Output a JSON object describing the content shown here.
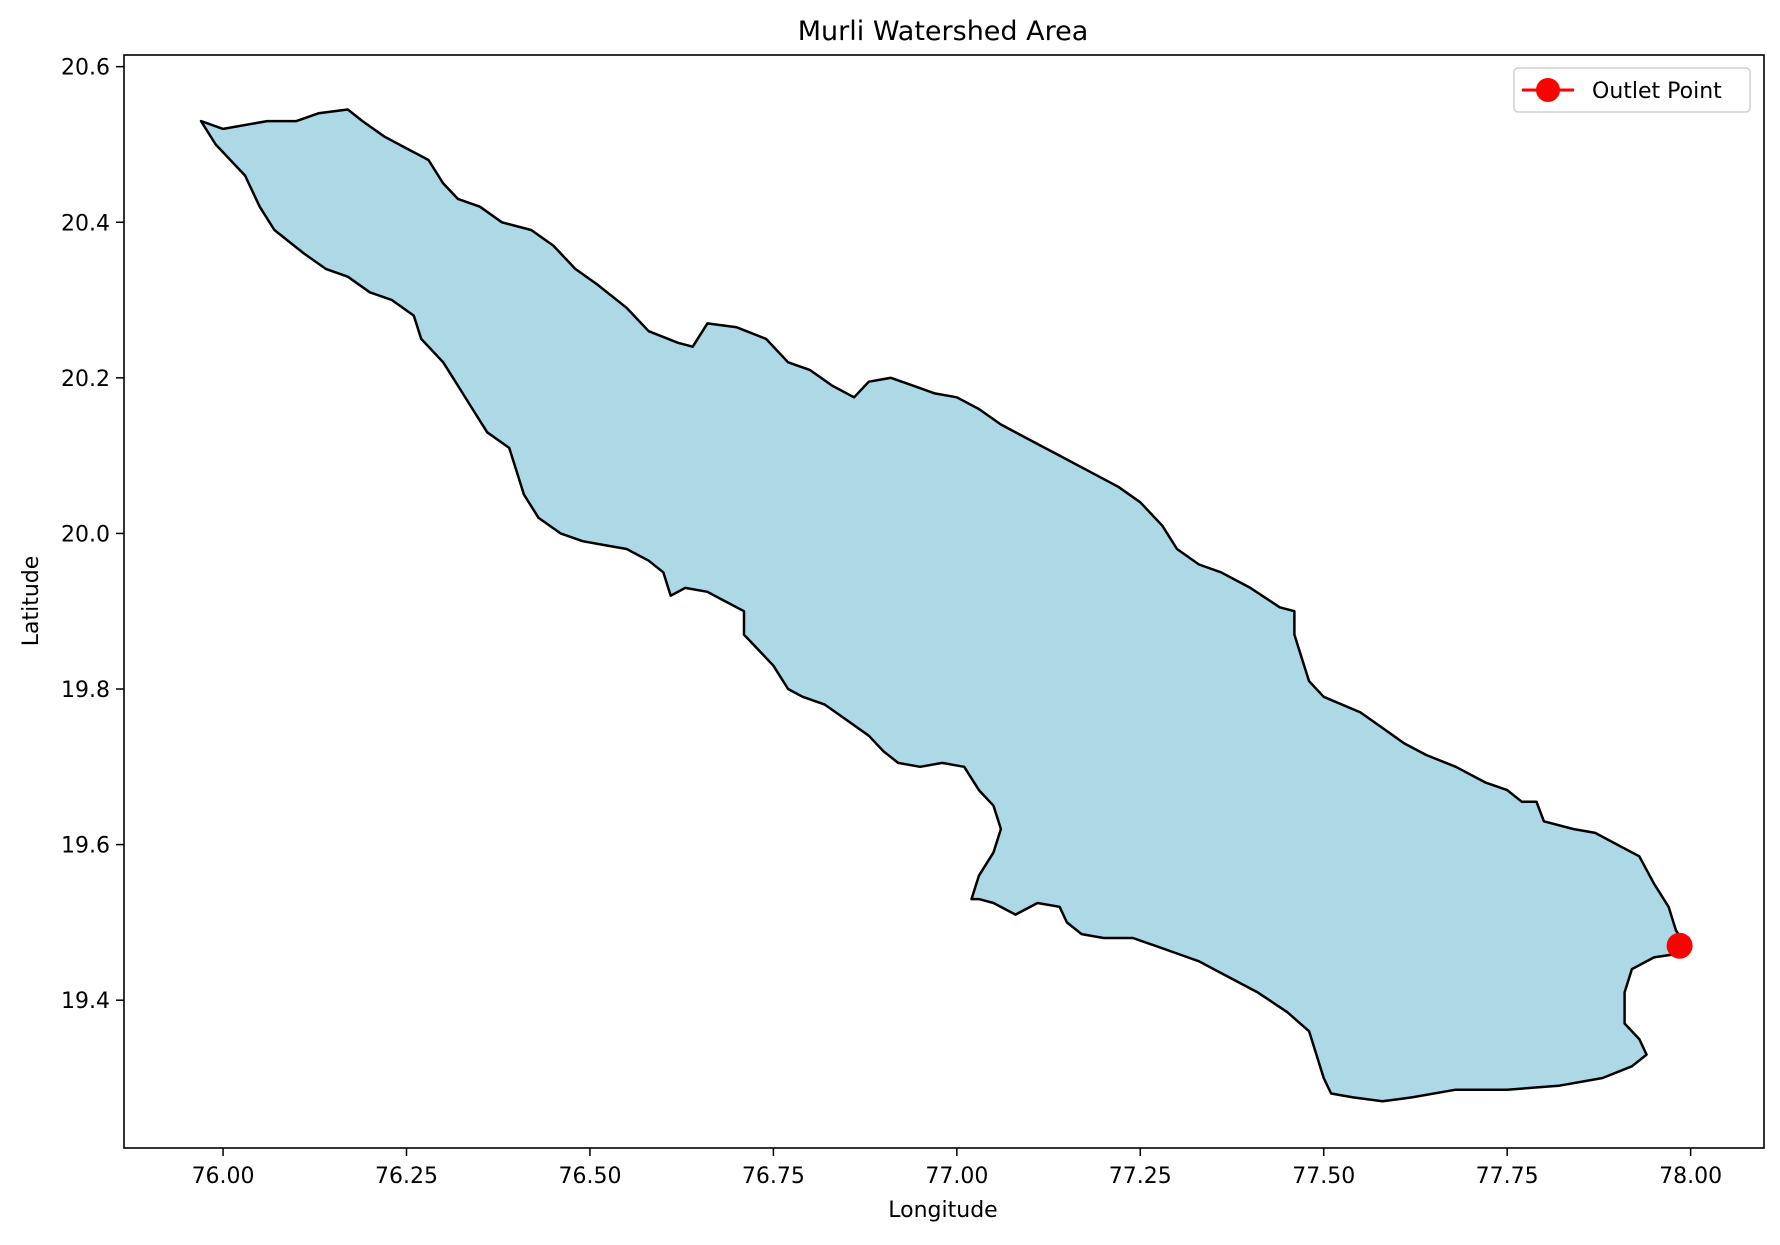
{
  "chart_data": {
    "type": "map",
    "title": "Murli Watershed Area",
    "xlabel": "Longitude",
    "ylabel": "Latitude",
    "xlim": [
      75.865,
      78.1
    ],
    "ylim": [
      19.21,
      20.615
    ],
    "x_ticks": [
      76.0,
      76.25,
      76.5,
      76.75,
      77.0,
      77.25,
      77.5,
      77.75,
      78.0
    ],
    "x_tick_labels": [
      "76.00",
      "76.25",
      "76.50",
      "76.75",
      "77.00",
      "77.25",
      "77.50",
      "77.75",
      "78.00"
    ],
    "y_ticks": [
      19.4,
      19.6,
      19.8,
      20.0,
      20.2,
      20.4,
      20.6
    ],
    "y_tick_labels": [
      "19.4",
      "19.6",
      "19.8",
      "20.0",
      "20.2",
      "20.4",
      "20.6"
    ],
    "grid": false,
    "legend": {
      "placement": "top-right",
      "entries": [
        {
          "label": "Outlet Point",
          "color": "#ff0000",
          "marker": "circle"
        }
      ]
    },
    "watershed": {
      "fill_color": "#add8e6",
      "edge_color": "#000000",
      "boundary": [
        [
          75.97,
          20.53
        ],
        [
          76.0,
          20.52
        ],
        [
          76.06,
          20.53
        ],
        [
          76.1,
          20.53
        ],
        [
          76.13,
          20.54
        ],
        [
          76.17,
          20.545
        ],
        [
          76.19,
          20.53
        ],
        [
          76.22,
          20.51
        ],
        [
          76.25,
          20.495
        ],
        [
          76.28,
          20.48
        ],
        [
          76.3,
          20.45
        ],
        [
          76.32,
          20.43
        ],
        [
          76.35,
          20.42
        ],
        [
          76.38,
          20.4
        ],
        [
          76.42,
          20.39
        ],
        [
          76.45,
          20.37
        ],
        [
          76.48,
          20.34
        ],
        [
          76.51,
          20.32
        ],
        [
          76.55,
          20.29
        ],
        [
          76.58,
          20.26
        ],
        [
          76.62,
          20.245
        ],
        [
          76.64,
          20.24
        ],
        [
          76.66,
          20.27
        ],
        [
          76.7,
          20.265
        ],
        [
          76.74,
          20.25
        ],
        [
          76.77,
          20.22
        ],
        [
          76.8,
          20.21
        ],
        [
          76.83,
          20.19
        ],
        [
          76.86,
          20.175
        ],
        [
          76.88,
          20.195
        ],
        [
          76.91,
          20.2
        ],
        [
          76.94,
          20.19
        ],
        [
          76.97,
          20.18
        ],
        [
          77.0,
          20.175
        ],
        [
          77.03,
          20.16
        ],
        [
          77.06,
          20.14
        ],
        [
          77.1,
          20.12
        ],
        [
          77.14,
          20.1
        ],
        [
          77.18,
          20.08
        ],
        [
          77.22,
          20.06
        ],
        [
          77.25,
          20.04
        ],
        [
          77.28,
          20.01
        ],
        [
          77.3,
          19.98
        ],
        [
          77.33,
          19.96
        ],
        [
          77.36,
          19.95
        ],
        [
          77.4,
          19.93
        ],
        [
          77.44,
          19.905
        ],
        [
          77.46,
          19.9
        ],
        [
          77.46,
          19.87
        ],
        [
          77.47,
          19.84
        ],
        [
          77.48,
          19.81
        ],
        [
          77.5,
          19.79
        ],
        [
          77.55,
          19.77
        ],
        [
          77.58,
          19.75
        ],
        [
          77.61,
          19.73
        ],
        [
          77.64,
          19.715
        ],
        [
          77.68,
          19.7
        ],
        [
          77.72,
          19.68
        ],
        [
          77.75,
          19.67
        ],
        [
          77.77,
          19.655
        ],
        [
          77.79,
          19.655
        ],
        [
          77.8,
          19.63
        ],
        [
          77.84,
          19.62
        ],
        [
          77.87,
          19.615
        ],
        [
          77.9,
          19.6
        ],
        [
          77.93,
          19.585
        ],
        [
          77.95,
          19.55
        ],
        [
          77.97,
          19.52
        ],
        [
          77.98,
          19.49
        ],
        [
          77.99,
          19.475
        ],
        [
          77.985,
          19.46
        ],
        [
          77.95,
          19.455
        ],
        [
          77.92,
          19.44
        ],
        [
          77.91,
          19.41
        ],
        [
          77.91,
          19.37
        ],
        [
          77.93,
          19.35
        ],
        [
          77.94,
          19.33
        ],
        [
          77.92,
          19.315
        ],
        [
          77.88,
          19.3
        ],
        [
          77.82,
          19.29
        ],
        [
          77.75,
          19.285
        ],
        [
          77.68,
          19.285
        ],
        [
          77.62,
          19.275
        ],
        [
          77.58,
          19.27
        ],
        [
          77.54,
          19.275
        ],
        [
          77.51,
          19.28
        ],
        [
          77.5,
          19.3
        ],
        [
          77.49,
          19.33
        ],
        [
          77.48,
          19.36
        ],
        [
          77.45,
          19.385
        ],
        [
          77.41,
          19.41
        ],
        [
          77.37,
          19.43
        ],
        [
          77.33,
          19.45
        ],
        [
          77.3,
          19.46
        ],
        [
          77.27,
          19.47
        ],
        [
          77.24,
          19.48
        ],
        [
          77.2,
          19.48
        ],
        [
          77.17,
          19.485
        ],
        [
          77.15,
          19.5
        ],
        [
          77.14,
          19.52
        ],
        [
          77.11,
          19.525
        ],
        [
          77.08,
          19.51
        ],
        [
          77.05,
          19.525
        ],
        [
          77.03,
          19.53
        ],
        [
          77.02,
          19.53
        ],
        [
          77.03,
          19.56
        ],
        [
          77.05,
          19.59
        ],
        [
          77.06,
          19.62
        ],
        [
          77.05,
          19.65
        ],
        [
          77.03,
          19.67
        ],
        [
          77.01,
          19.7
        ],
        [
          76.98,
          19.705
        ],
        [
          76.95,
          19.7
        ],
        [
          76.92,
          19.705
        ],
        [
          76.9,
          19.72
        ],
        [
          76.88,
          19.74
        ],
        [
          76.85,
          19.76
        ],
        [
          76.82,
          19.78
        ],
        [
          76.79,
          19.79
        ],
        [
          76.77,
          19.8
        ],
        [
          76.75,
          19.83
        ],
        [
          76.73,
          19.85
        ],
        [
          76.71,
          19.87
        ],
        [
          76.71,
          19.9
        ],
        [
          76.68,
          19.915
        ],
        [
          76.66,
          19.925
        ],
        [
          76.63,
          19.93
        ],
        [
          76.61,
          19.92
        ],
        [
          76.6,
          19.95
        ],
        [
          76.58,
          19.965
        ],
        [
          76.55,
          19.98
        ],
        [
          76.52,
          19.985
        ],
        [
          76.49,
          19.99
        ],
        [
          76.46,
          20.0
        ],
        [
          76.43,
          20.02
        ],
        [
          76.41,
          20.05
        ],
        [
          76.4,
          20.08
        ],
        [
          76.39,
          20.11
        ],
        [
          76.36,
          20.13
        ],
        [
          76.34,
          20.16
        ],
        [
          76.32,
          20.19
        ],
        [
          76.3,
          20.22
        ],
        [
          76.27,
          20.25
        ],
        [
          76.26,
          20.28
        ],
        [
          76.23,
          20.3
        ],
        [
          76.2,
          20.31
        ],
        [
          76.17,
          20.33
        ],
        [
          76.14,
          20.34
        ],
        [
          76.11,
          20.36
        ],
        [
          76.07,
          20.39
        ],
        [
          76.05,
          20.42
        ],
        [
          76.03,
          20.46
        ],
        [
          75.99,
          20.5
        ],
        [
          75.97,
          20.53
        ]
      ]
    },
    "series": [
      {
        "name": "Outlet Point",
        "color": "#ff0000",
        "points": [
          [
            77.985,
            19.47
          ]
        ]
      }
    ]
  }
}
